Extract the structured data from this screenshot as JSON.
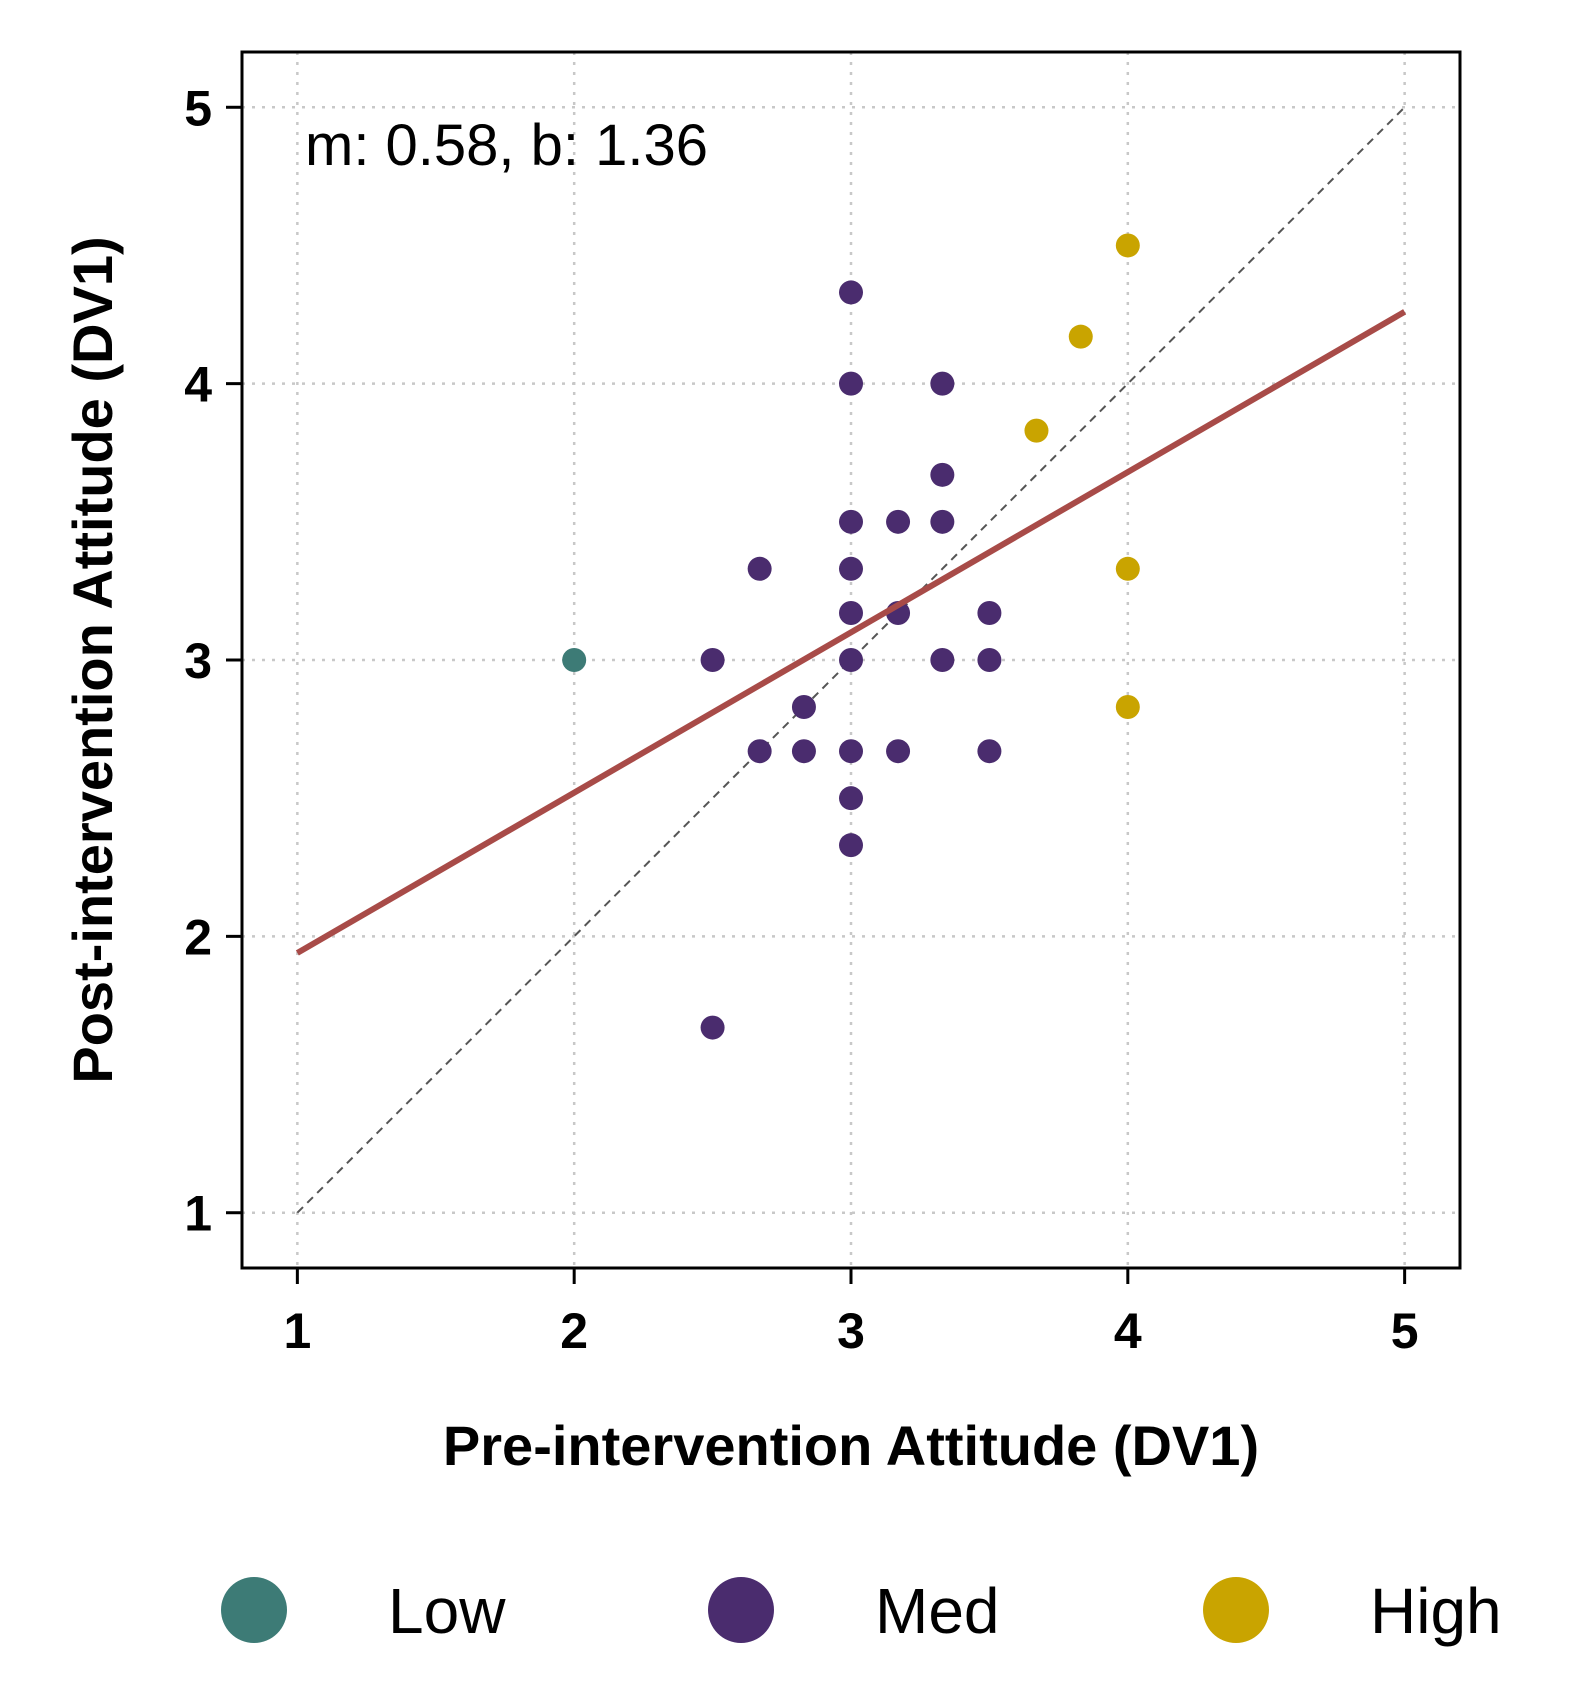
{
  "chart_data": {
    "type": "scatter",
    "xlabel": "Pre-intervention Attitude (DV1)",
    "ylabel": "Post-intervention Attitude (DV1)",
    "xlim": [
      0.8,
      5.2
    ],
    "ylim": [
      0.8,
      5.2
    ],
    "xticks": [
      "1",
      "2",
      "3",
      "4",
      "5"
    ],
    "yticks": [
      "1",
      "2",
      "3",
      "4",
      "5"
    ],
    "grid": true,
    "annotation": "m: 0.58, b: 1.36",
    "fit_line": {
      "slope": 0.58,
      "intercept": 1.36,
      "x_range": [
        1,
        5
      ],
      "color": "#a84b48"
    },
    "identity_line": {
      "x_range": [
        1,
        5
      ],
      "color": "#555555"
    },
    "legend": {
      "placement": "bottom",
      "entries": [
        "Low",
        "Med",
        "High"
      ]
    },
    "series": [
      {
        "name": "Low",
        "color": "#3d7b76",
        "points": [
          [
            2.0,
            3.0
          ]
        ]
      },
      {
        "name": "Med",
        "color": "#4a2c6e",
        "points": [
          [
            3.0,
            4.33
          ],
          [
            3.0,
            4.0
          ],
          [
            3.33,
            4.0
          ],
          [
            3.33,
            3.67
          ],
          [
            3.0,
            3.5
          ],
          [
            3.17,
            3.5
          ],
          [
            3.33,
            3.5
          ],
          [
            2.67,
            3.33
          ],
          [
            3.0,
            3.33
          ],
          [
            3.0,
            3.17
          ],
          [
            3.17,
            3.17
          ],
          [
            3.5,
            3.17
          ],
          [
            2.5,
            3.0
          ],
          [
            3.0,
            3.0
          ],
          [
            3.33,
            3.0
          ],
          [
            3.5,
            3.0
          ],
          [
            2.83,
            2.83
          ],
          [
            2.67,
            2.67
          ],
          [
            2.83,
            2.67
          ],
          [
            3.0,
            2.67
          ],
          [
            3.17,
            2.67
          ],
          [
            3.5,
            2.67
          ],
          [
            3.0,
            2.5
          ],
          [
            3.0,
            2.33
          ],
          [
            2.5,
            1.67
          ]
        ]
      },
      {
        "name": "High",
        "color": "#c9a400",
        "points": [
          [
            4.0,
            4.5
          ],
          [
            3.83,
            4.17
          ],
          [
            3.67,
            3.83
          ],
          [
            4.0,
            3.33
          ],
          [
            4.0,
            2.83
          ]
        ]
      }
    ]
  }
}
